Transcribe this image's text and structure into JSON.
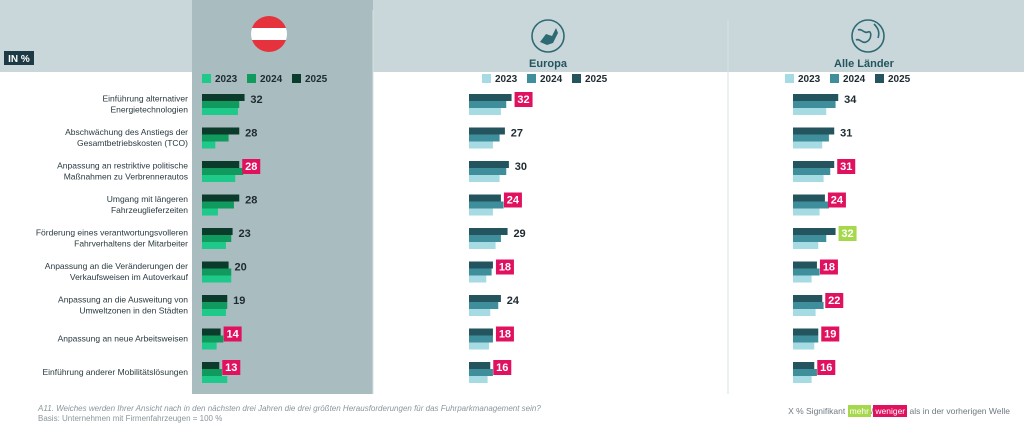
{
  "unit_badge": "IN %",
  "groups": [
    {
      "name": "",
      "icon": "austria-flag-icon"
    },
    {
      "name": "Europa",
      "icon": "europe-icon"
    },
    {
      "name": "Alle Länder",
      "icon": "globe-icon"
    }
  ],
  "colors": {
    "header_band": "#c9d7da",
    "austria_highlight": "#a9bcbf",
    "austria_series": [
      "#1ec98a",
      "#119a5e",
      "#0b3b2a"
    ],
    "other_series": [
      "#a6dbe3",
      "#3f8e9c",
      "#24555f"
    ],
    "more_sig": "#a6d84b",
    "less_sig": "#e0115f"
  },
  "chart_data": {
    "type": "bar",
    "orientation": "horizontal",
    "categories": [
      "Einführung alternativer Energietechnologien",
      "Abschwächung des Anstiegs der Gesamtbetriebskosten (TCO)",
      "Anpassung an restriktive politische Maßnahmen zu Verbrennerautos",
      "Umgang mit längeren Fahrzeuglieferzeiten",
      "Förderung eines verantwortungsvolleren Fahrverhaltens der Mitarbeiter",
      "Anpassung an die Veränderungen der Verkaufsweisen im Autoverkauf",
      "Anpassung an die Ausweitung von Umweltzonen in den Städten",
      "Anpassung an neue Arbeitsweisen",
      "Einführung anderer Mobilitätslösungen"
    ],
    "category_lines": [
      [
        "Einführung alternativer",
        "Energietechnologien"
      ],
      [
        "Abschwächung des Anstiegs der",
        "Gesamtbetriebskosten (TCO)"
      ],
      [
        "Anpassung an restriktive politische",
        "Maßnahmen zu Verbrennerautos"
      ],
      [
        "Umgang mit längeren",
        "Fahrzeuglieferzeiten"
      ],
      [
        "Förderung eines verantwortungsvolleren",
        "Fahrverhaltens der Mitarbeiter"
      ],
      [
        "Anpassung an die Veränderungen der",
        "Verkaufsweisen im Autoverkauf"
      ],
      [
        "Anpassung an die Ausweitung von",
        "Umweltzonen in den Städten"
      ],
      [
        "Anpassung an neue Arbeitsweisen"
      ],
      [
        "Einführung anderer Mobilitätslösungen"
      ]
    ],
    "series_names": [
      "2023",
      "2024",
      "2025"
    ],
    "panels": [
      {
        "name": "",
        "series": [
          {
            "name": "2023",
            "values": [
              27,
              10,
              25,
              12,
              18,
              22,
              18,
              11,
              19
            ]
          },
          {
            "name": "2024",
            "values": [
              28,
              20,
              31,
              24,
              22,
              22,
              19,
              16,
              15
            ]
          },
          {
            "name": "2025",
            "values": [
              32,
              28,
              28,
              28,
              23,
              20,
              19,
              14,
              13
            ]
          }
        ],
        "labels": [
          "32",
          "28",
          "28",
          "28",
          "23",
          "20",
          "19",
          "14",
          "13"
        ],
        "significance": [
          "",
          "",
          "less",
          "",
          "",
          "",
          "",
          "less",
          "less"
        ]
      },
      {
        "name": "Europa",
        "series": [
          {
            "name": "2023",
            "values": [
              24,
              18,
              23,
              18,
              20,
              13,
              16,
              15,
              14
            ]
          },
          {
            "name": "2024",
            "values": [
              28,
              23,
              28,
              26,
              24,
              17,
              22,
              18,
              18
            ]
          },
          {
            "name": "2025",
            "values": [
              32,
              27,
              30,
              24,
              29,
              18,
              24,
              18,
              16
            ]
          }
        ],
        "labels": [
          "32",
          "27",
          "30",
          "24",
          "29",
          "18",
          "24",
          "18",
          "16"
        ],
        "significance": [
          "less",
          "",
          "",
          "less",
          "",
          "less",
          "",
          "less",
          "less"
        ]
      },
      {
        "name": "Alle Länder",
        "series": [
          {
            "name": "2023",
            "values": [
              25,
              22,
              23,
              20,
              19,
              14,
              17,
              16,
              14
            ]
          },
          {
            "name": "2024",
            "values": [
              32,
              27,
              28,
              27,
              25,
              20,
              23,
              19,
              18
            ]
          },
          {
            "name": "2025",
            "values": [
              34,
              31,
              31,
              24,
              32,
              18,
              22,
              19,
              16
            ]
          }
        ],
        "labels": [
          "34",
          "31",
          "31",
          "24",
          "32",
          "18",
          "22",
          "19",
          "16"
        ],
        "significance": [
          "",
          "",
          "less",
          "less",
          "more",
          "less",
          "less",
          "less",
          "less"
        ]
      }
    ]
  },
  "footnote": {
    "question": "A11. Weiches werden Ihrer Ansicht nach in den nächsten drei Jahren die drei größten Herausforderungen für das Fuhrparkmanagement sein?",
    "basis": "Basis: Unternehmen mit Firmenfahrzeugen = 100 %"
  },
  "sig_legend": {
    "prefix": "X % Signifikant",
    "more": "mehr",
    "sep": "/",
    "less": "weniger",
    "suffix": "als in der vorherigen Welle"
  }
}
